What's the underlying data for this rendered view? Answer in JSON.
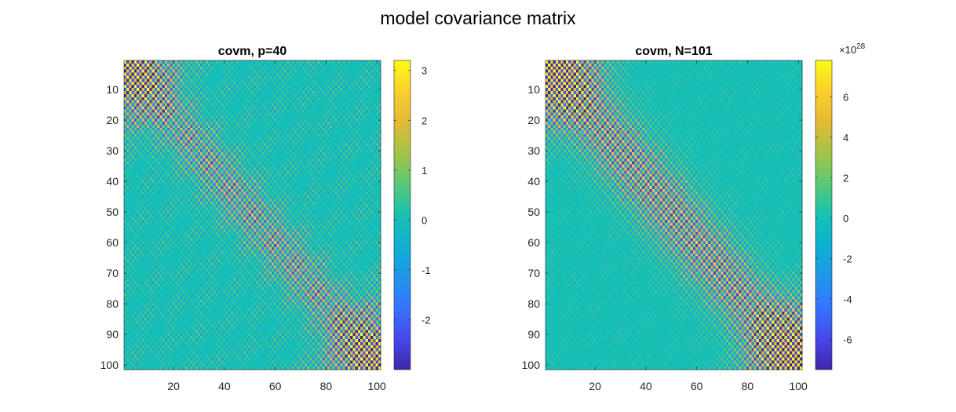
{
  "figure": {
    "suptitle": "model covariance matrix"
  },
  "chart_data": [
    {
      "type": "heatmap",
      "title": "covm, p=40",
      "xlabel": "",
      "ylabel": "",
      "matrix_size": 101,
      "xlim": [
        1,
        101
      ],
      "ylim": [
        1,
        101
      ],
      "y_reversed": true,
      "xticks": [
        20,
        40,
        60,
        80,
        100
      ],
      "yticks": [
        10,
        20,
        30,
        40,
        50,
        60,
        70,
        80,
        90,
        100
      ],
      "colormap": "parula",
      "clim": [
        -3,
        3.2
      ],
      "colorbar_ticks": [
        -2,
        -1,
        0,
        1,
        2,
        3
      ],
      "colorbar_exponent": "",
      "pattern": {
        "description": "checkerboard with alternating sign; strong diagonal band of width ~10, stronger oscillation at matrix corners",
        "diag_amplitude": 1.6,
        "band_width": 9,
        "background_amplitude": 0.75,
        "corner_amplitude": 2.8
      }
    },
    {
      "type": "heatmap",
      "title": "covm, N=101",
      "xlabel": "",
      "ylabel": "",
      "matrix_size": 101,
      "xlim": [
        1,
        101
      ],
      "ylim": [
        1,
        101
      ],
      "y_reversed": true,
      "xticks": [
        20,
        40,
        60,
        80,
        100
      ],
      "yticks": [
        10,
        20,
        30,
        40,
        50,
        60,
        70,
        80,
        90,
        100
      ],
      "colormap": "parula",
      "clim": [
        -7.5,
        7.8
      ],
      "colorbar_ticks": [
        -6,
        -4,
        -2,
        0,
        2,
        4,
        6
      ],
      "colorbar_exponent": "28",
      "colorbar_base": "×10",
      "pattern": {
        "description": "fine high-frequency checkerboard concentrated along the diagonal, strongest in the lower-right corner",
        "diag_amplitude": 5.5,
        "band_width": 12,
        "background_amplitude": 0.8,
        "corner_amplitude": 7.5
      }
    }
  ]
}
